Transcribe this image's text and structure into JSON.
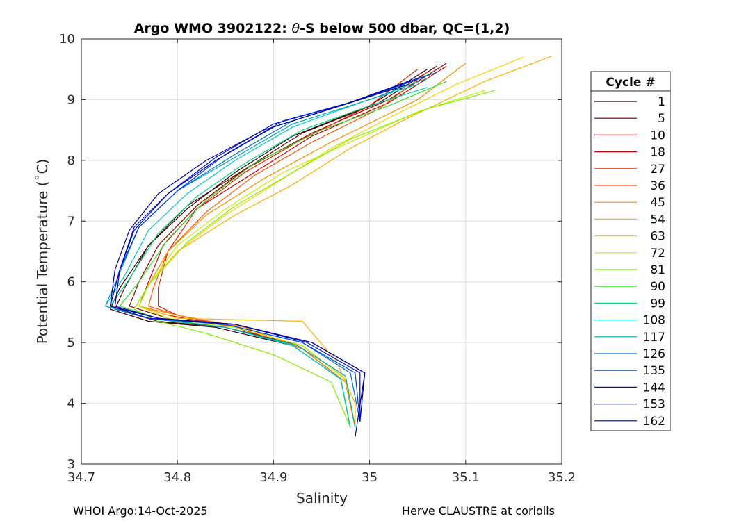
{
  "chart_data": {
    "type": "line",
    "title_prefix": "Argo WMO 3902122: ",
    "title_theta": "θ",
    "title_suffix": "-S below 500 dbar,  QC=(1,2)",
    "xlabel": "Salinity",
    "ylabel": "Potential Temperature (˚C)",
    "xlim": [
      34.7,
      35.2
    ],
    "ylim": [
      3,
      10
    ],
    "x_ticks": [
      34.7,
      34.8,
      34.9,
      35,
      35.1,
      35.2
    ],
    "x_tick_labels": [
      "34.7",
      "34.8",
      "34.9",
      "35",
      "35.1",
      "35.2"
    ],
    "y_ticks": [
      3,
      4,
      5,
      6,
      7,
      8,
      9,
      10
    ],
    "y_tick_labels": [
      "3",
      "4",
      "5",
      "6",
      "7",
      "8",
      "9",
      "10"
    ],
    "grid": true,
    "legend_title": "Cycle #",
    "legend_position": "right-outside",
    "series": [
      {
        "name": "1",
        "color": "#2a0000",
        "points": [
          [
            35.06,
            9.5
          ],
          [
            35.0,
            8.9
          ],
          [
            34.92,
            8.4
          ],
          [
            34.86,
            7.8
          ],
          [
            34.81,
            7.2
          ],
          [
            34.77,
            6.6
          ],
          [
            34.74,
            5.9
          ],
          [
            34.73,
            5.55
          ],
          [
            34.77,
            5.35
          ],
          [
            34.84,
            5.25
          ],
          [
            34.92,
            4.95
          ],
          [
            34.97,
            4.4
          ],
          [
            34.98,
            3.6
          ]
        ]
      },
      {
        "name": "5",
        "color": "#550000",
        "points": [
          [
            35.07,
            9.55
          ],
          [
            35.01,
            8.95
          ],
          [
            34.93,
            8.45
          ],
          [
            34.87,
            7.85
          ],
          [
            34.81,
            7.25
          ],
          [
            34.77,
            6.6
          ],
          [
            34.745,
            5.9
          ],
          [
            34.735,
            5.55
          ],
          [
            34.78,
            5.35
          ],
          [
            34.85,
            5.25
          ],
          [
            34.93,
            4.95
          ],
          [
            34.975,
            4.4
          ],
          [
            34.985,
            3.6
          ]
        ]
      },
      {
        "name": "10",
        "color": "#8b0000",
        "points": [
          [
            35.08,
            9.6
          ],
          [
            35.02,
            9.0
          ],
          [
            34.94,
            8.45
          ],
          [
            34.87,
            7.85
          ],
          [
            34.82,
            7.25
          ],
          [
            34.78,
            6.6
          ],
          [
            34.76,
            6.0
          ],
          [
            34.75,
            5.6
          ],
          [
            34.79,
            5.4
          ],
          [
            34.86,
            5.25
          ],
          [
            34.93,
            4.95
          ],
          [
            34.975,
            4.4
          ],
          [
            34.985,
            3.6
          ]
        ]
      },
      {
        "name": "18",
        "color": "#c00000",
        "points": [
          [
            35.08,
            9.55
          ],
          [
            35.02,
            8.95
          ],
          [
            34.94,
            8.4
          ],
          [
            34.88,
            7.8
          ],
          [
            34.82,
            7.2
          ],
          [
            34.785,
            6.6
          ],
          [
            34.77,
            6.0
          ],
          [
            34.76,
            5.6
          ],
          [
            34.79,
            5.45
          ],
          [
            34.86,
            5.25
          ],
          [
            34.93,
            4.9
          ],
          [
            34.975,
            4.35
          ],
          [
            34.985,
            3.6
          ]
        ]
      },
      {
        "name": "27",
        "color": "#e62000",
        "points": [
          [
            35.05,
            9.5
          ],
          [
            35.0,
            8.9
          ],
          [
            34.93,
            8.35
          ],
          [
            34.87,
            7.8
          ],
          [
            34.82,
            7.2
          ],
          [
            34.79,
            6.5
          ],
          [
            34.78,
            5.9
          ],
          [
            34.78,
            5.6
          ],
          [
            34.8,
            5.45
          ],
          [
            34.86,
            5.25
          ],
          [
            34.93,
            4.9
          ],
          [
            34.975,
            4.35
          ],
          [
            34.985,
            3.6
          ]
        ]
      },
      {
        "name": "36",
        "color": "#ff5500",
        "points": [
          [
            35.06,
            9.45
          ],
          [
            35.01,
            8.85
          ],
          [
            34.94,
            8.3
          ],
          [
            34.88,
            7.75
          ],
          [
            34.83,
            7.15
          ],
          [
            34.79,
            6.5
          ],
          [
            34.775,
            5.9
          ],
          [
            34.77,
            5.6
          ],
          [
            34.8,
            5.45
          ],
          [
            34.87,
            5.25
          ],
          [
            34.93,
            4.9
          ],
          [
            34.975,
            4.35
          ],
          [
            34.985,
            3.6
          ]
        ]
      },
      {
        "name": "45",
        "color": "#ff8800",
        "points": [
          [
            35.1,
            9.6
          ],
          [
            35.05,
            9.0
          ],
          [
            34.96,
            8.3
          ],
          [
            34.89,
            7.7
          ],
          [
            34.83,
            7.1
          ],
          [
            34.79,
            6.5
          ],
          [
            34.77,
            5.95
          ],
          [
            34.76,
            5.6
          ],
          [
            34.8,
            5.45
          ],
          [
            34.87,
            5.25
          ],
          [
            34.93,
            4.9
          ],
          [
            34.975,
            4.35
          ],
          [
            34.985,
            3.6
          ]
        ]
      },
      {
        "name": "54",
        "color": "#ffb000",
        "points": [
          [
            35.19,
            9.72
          ],
          [
            35.12,
            9.3
          ],
          [
            35.04,
            8.7
          ],
          [
            34.98,
            8.2
          ],
          [
            34.92,
            7.6
          ],
          [
            34.86,
            7.1
          ],
          [
            34.8,
            6.5
          ],
          [
            34.77,
            5.95
          ],
          [
            34.76,
            5.6
          ],
          [
            34.8,
            5.4
          ],
          [
            34.93,
            5.35
          ],
          [
            34.965,
            4.7
          ],
          [
            34.985,
            4.0
          ],
          [
            34.985,
            3.6
          ]
        ]
      },
      {
        "name": "63",
        "color": "#ffd000",
        "points": [
          [
            35.16,
            9.7
          ],
          [
            35.09,
            9.25
          ],
          [
            35.02,
            8.7
          ],
          [
            34.96,
            8.2
          ],
          [
            34.9,
            7.6
          ],
          [
            34.85,
            7.1
          ],
          [
            34.8,
            6.5
          ],
          [
            34.77,
            5.95
          ],
          [
            34.76,
            5.6
          ],
          [
            34.79,
            5.4
          ],
          [
            34.86,
            5.25
          ],
          [
            34.93,
            4.95
          ],
          [
            34.975,
            4.4
          ],
          [
            34.985,
            3.6
          ]
        ]
      },
      {
        "name": "72",
        "color": "#c8f000",
        "points": [
          [
            35.12,
            9.15
          ],
          [
            35.05,
            8.8
          ],
          [
            34.98,
            8.3
          ],
          [
            34.91,
            7.8
          ],
          [
            34.85,
            7.2
          ],
          [
            34.8,
            6.6
          ],
          [
            34.77,
            5.95
          ],
          [
            34.76,
            5.6
          ],
          [
            34.79,
            5.4
          ],
          [
            34.86,
            5.25
          ],
          [
            34.93,
            4.95
          ],
          [
            34.975,
            4.4
          ],
          [
            34.985,
            3.6
          ]
        ]
      },
      {
        "name": "81",
        "color": "#80ee00",
        "points": [
          [
            35.13,
            9.15
          ],
          [
            35.06,
            8.85
          ],
          [
            34.98,
            8.35
          ],
          [
            34.92,
            7.8
          ],
          [
            34.86,
            7.25
          ],
          [
            34.81,
            6.65
          ],
          [
            34.77,
            5.95
          ],
          [
            34.755,
            5.55
          ],
          [
            34.78,
            5.35
          ],
          [
            34.83,
            5.15
          ],
          [
            34.9,
            4.8
          ],
          [
            34.96,
            4.35
          ],
          [
            34.98,
            3.6
          ]
        ]
      },
      {
        "name": "90",
        "color": "#30e030",
        "points": [
          [
            35.08,
            9.3
          ],
          [
            35.02,
            8.9
          ],
          [
            34.95,
            8.5
          ],
          [
            34.88,
            7.95
          ],
          [
            34.83,
            7.35
          ],
          [
            34.79,
            6.7
          ],
          [
            34.76,
            6.0
          ],
          [
            34.74,
            5.6
          ],
          [
            34.78,
            5.4
          ],
          [
            34.85,
            5.25
          ],
          [
            34.92,
            4.95
          ],
          [
            34.97,
            4.4
          ],
          [
            34.98,
            3.6
          ]
        ]
      },
      {
        "name": "99",
        "color": "#00d88a",
        "points": [
          [
            35.06,
            9.2
          ],
          [
            35.0,
            8.9
          ],
          [
            34.93,
            8.5
          ],
          [
            34.87,
            7.95
          ],
          [
            34.82,
            7.4
          ],
          [
            34.78,
            6.8
          ],
          [
            34.75,
            6.05
          ],
          [
            34.73,
            5.6
          ],
          [
            34.77,
            5.4
          ],
          [
            34.85,
            5.25
          ],
          [
            34.92,
            4.95
          ],
          [
            34.97,
            4.4
          ],
          [
            34.98,
            3.6
          ]
        ]
      },
      {
        "name": "108",
        "color": "#00c8c8",
        "points": [
          [
            35.05,
            9.25
          ],
          [
            34.99,
            8.95
          ],
          [
            34.92,
            8.55
          ],
          [
            34.86,
            8.0
          ],
          [
            34.81,
            7.45
          ],
          [
            34.77,
            6.85
          ],
          [
            34.745,
            6.1
          ],
          [
            34.725,
            5.6
          ],
          [
            34.77,
            5.4
          ],
          [
            34.85,
            5.25
          ],
          [
            34.92,
            4.95
          ],
          [
            34.97,
            4.4
          ],
          [
            34.98,
            3.6
          ]
        ]
      },
      {
        "name": "117",
        "color": "#00a0b8",
        "points": [
          [
            35.06,
            9.35
          ],
          [
            35.0,
            9.0
          ],
          [
            34.92,
            8.6
          ],
          [
            34.86,
            8.05
          ],
          [
            34.8,
            7.5
          ],
          [
            34.76,
            6.9
          ],
          [
            34.74,
            6.15
          ],
          [
            34.725,
            5.6
          ],
          [
            34.77,
            5.4
          ],
          [
            34.85,
            5.25
          ],
          [
            34.925,
            4.95
          ],
          [
            34.975,
            4.45
          ],
          [
            34.985,
            3.6
          ]
        ]
      },
      {
        "name": "126",
        "color": "#0070d0",
        "points": [
          [
            35.07,
            9.45
          ],
          [
            35.0,
            9.05
          ],
          [
            34.92,
            8.65
          ],
          [
            34.86,
            8.1
          ],
          [
            34.8,
            7.5
          ],
          [
            34.76,
            6.9
          ],
          [
            34.74,
            6.2
          ],
          [
            34.73,
            5.6
          ],
          [
            34.77,
            5.4
          ],
          [
            34.85,
            5.3
          ],
          [
            34.93,
            5.0
          ],
          [
            34.98,
            4.5
          ],
          [
            34.99,
            3.7
          ]
        ]
      },
      {
        "name": "135",
        "color": "#0040e0",
        "points": [
          [
            35.06,
            9.4
          ],
          [
            34.99,
            9.0
          ],
          [
            34.91,
            8.65
          ],
          [
            34.85,
            8.1
          ],
          [
            34.8,
            7.5
          ],
          [
            34.76,
            6.9
          ],
          [
            34.74,
            6.2
          ],
          [
            34.73,
            5.6
          ],
          [
            34.77,
            5.4
          ],
          [
            34.85,
            5.3
          ],
          [
            34.93,
            5.0
          ],
          [
            34.985,
            4.5
          ],
          [
            34.99,
            3.7
          ]
        ]
      },
      {
        "name": "144",
        "color": "#0010d8",
        "points": [
          [
            35.05,
            9.35
          ],
          [
            34.98,
            8.95
          ],
          [
            34.9,
            8.6
          ],
          [
            34.84,
            8.05
          ],
          [
            34.79,
            7.45
          ],
          [
            34.755,
            6.9
          ],
          [
            34.74,
            6.2
          ],
          [
            34.73,
            5.6
          ],
          [
            34.77,
            5.4
          ],
          [
            34.86,
            5.3
          ],
          [
            34.935,
            5.0
          ],
          [
            34.99,
            4.5
          ],
          [
            34.99,
            3.7
          ]
        ]
      },
      {
        "name": "153",
        "color": "#0000b0",
        "points": [
          [
            35.04,
            9.3
          ],
          [
            34.97,
            8.9
          ],
          [
            34.9,
            8.55
          ],
          [
            34.84,
            8.0
          ],
          [
            34.79,
            7.45
          ],
          [
            34.755,
            6.85
          ],
          [
            34.74,
            6.2
          ],
          [
            34.735,
            5.6
          ],
          [
            34.78,
            5.4
          ],
          [
            34.86,
            5.3
          ],
          [
            34.94,
            5.0
          ],
          [
            34.995,
            4.5
          ],
          [
            34.99,
            3.7
          ]
        ]
      },
      {
        "name": "162",
        "color": "#000088",
        "points": [
          [
            35.04,
            9.25
          ],
          [
            34.97,
            8.9
          ],
          [
            34.89,
            8.5
          ],
          [
            34.83,
            8.0
          ],
          [
            34.78,
            7.45
          ],
          [
            34.75,
            6.85
          ],
          [
            34.735,
            6.2
          ],
          [
            34.73,
            5.6
          ],
          [
            34.78,
            5.4
          ],
          [
            34.86,
            5.3
          ],
          [
            34.94,
            5.0
          ],
          [
            34.995,
            4.5
          ],
          [
            34.985,
            3.45
          ]
        ]
      }
    ]
  },
  "footer": {
    "left": "WHOI Argo:14-Oct-2025",
    "right": "Herve CLAUSTRE at coriolis"
  }
}
